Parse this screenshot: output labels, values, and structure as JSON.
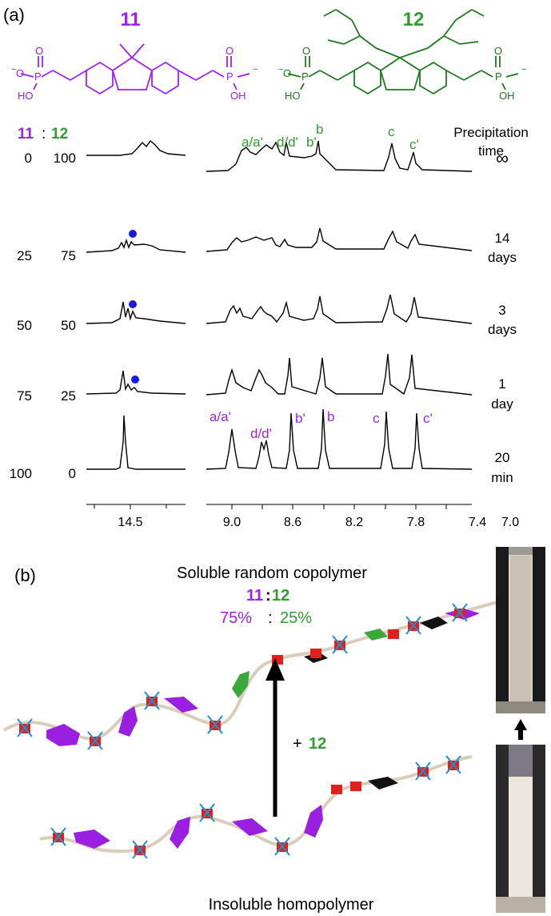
{
  "panel_a": {
    "label": "(a)",
    "compound_11": {
      "number": "11",
      "substituents": [
        "O",
        "O",
        "HO",
        "P",
        "P",
        "OH",
        "O"
      ]
    },
    "compound_12": {
      "number": "12",
      "substituents": [
        "O",
        "O",
        "HO",
        "P",
        "P",
        "OH",
        "O"
      ]
    },
    "ratio_header": {
      "left": "11",
      "sep": ":",
      "right": "12"
    },
    "time_header": [
      "Precipitation",
      "time"
    ],
    "rows": [
      {
        "r11": "0",
        "r12": "100",
        "time": [
          "∞"
        ]
      },
      {
        "r11": "25",
        "r12": "75",
        "time": [
          "14",
          "days"
        ]
      },
      {
        "r11": "50",
        "r12": "50",
        "time": [
          "3",
          "days"
        ]
      },
      {
        "r11": "75",
        "r12": "25",
        "time": [
          "1",
          "day"
        ]
      },
      {
        "r11": "100",
        "r12": "0",
        "time": [
          "20",
          "min"
        ]
      }
    ],
    "peak_labels_12": [
      "a/a'",
      "d/d'",
      "b'",
      "b",
      "c",
      "c'"
    ],
    "peak_labels_11": [
      "a/a'",
      "d/d'",
      "b'",
      "b",
      "c",
      "c'"
    ],
    "axis_left_ticks": [
      "14.5"
    ],
    "axis_right_ticks": [
      "9.0",
      "8.6",
      "8.2",
      "7.8",
      "7.4",
      "7.0"
    ]
  },
  "panel_b": {
    "label": "(b)",
    "title": "Soluble random copolymer",
    "ratio": {
      "left": "11",
      "sep": ":",
      "right": "12"
    },
    "percent": {
      "left": "75%",
      "sep": ":",
      "right": "25%"
    },
    "arrow_label": {
      "plus": "+",
      "num": "12"
    },
    "bottom_label": "Insoluble homopolymer"
  },
  "colors": {
    "purple": "#a020f0",
    "green": "#2e9e2e",
    "dark_green": "#1f7a1f",
    "blue_dot": "#1a1ae6",
    "black": "#000000"
  }
}
